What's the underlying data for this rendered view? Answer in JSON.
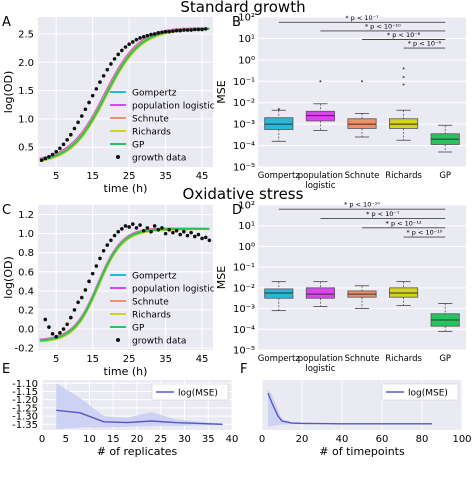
{
  "sections": [
    {
      "title": "Standard growth"
    },
    {
      "title": "Oxidative stress"
    }
  ],
  "colors": {
    "gompertz": "#29b6d9",
    "population_logistic": "#d946ef",
    "schnute": "#f0906a",
    "richards": "#d4d420",
    "gp": "#22c55e",
    "growth_data": "#111111",
    "axes_bg": "#eaeaf2",
    "grid": "#ffffff",
    "log_mse_line": "#5558c8",
    "log_mse_band": "#c8cdf2"
  },
  "chart_data": [
    {
      "panel": "A",
      "type": "line",
      "xlabel": "time (h)",
      "ylabel": "log(OD)",
      "xlim": [
        0,
        48
      ],
      "ylim": [
        0.15,
        2.8
      ],
      "xticks": [
        5,
        15,
        25,
        35,
        45
      ],
      "yticks": [
        0.5,
        1.0,
        1.5,
        2.0,
        2.5
      ],
      "ytick_labels": [
        "0.5",
        "1.0",
        "1.5",
        "2.0",
        "2.5"
      ],
      "legend": "bottom-right",
      "model": {
        "type": "logistic",
        "base": 0.22,
        "amp": 2.38,
        "mid": 18.5,
        "rate": 0.21
      },
      "series": [
        {
          "name": "Gompertz",
          "key": "gompertz",
          "offset": -0.02
        },
        {
          "name": "population logistic",
          "key": "population_logistic",
          "offset": 0.06
        },
        {
          "name": "Schnute",
          "key": "schnute",
          "offset": 0.03
        },
        {
          "name": "Richards",
          "key": "richards",
          "offset": -0.04
        },
        {
          "name": "GP",
          "key": "gp",
          "offset": 0.0
        }
      ],
      "data_name": "growth data",
      "data_points": [
        [
          1,
          0.27
        ],
        [
          2,
          0.3
        ],
        [
          3,
          0.33
        ],
        [
          4,
          0.37
        ],
        [
          5,
          0.42
        ],
        [
          6,
          0.48
        ],
        [
          7,
          0.55
        ],
        [
          8,
          0.63
        ],
        [
          9,
          0.72
        ],
        [
          10,
          0.83
        ],
        [
          11,
          0.94
        ],
        [
          12,
          1.05
        ],
        [
          13,
          1.17
        ],
        [
          14,
          1.29
        ],
        [
          15,
          1.41
        ],
        [
          16,
          1.53
        ],
        [
          17,
          1.65
        ],
        [
          18,
          1.76
        ],
        [
          19,
          1.87
        ],
        [
          20,
          1.97
        ],
        [
          21,
          2.06
        ],
        [
          22,
          2.14
        ],
        [
          23,
          2.21
        ],
        [
          24,
          2.27
        ],
        [
          25,
          2.32
        ],
        [
          26,
          2.36
        ],
        [
          27,
          2.4
        ],
        [
          28,
          2.43
        ],
        [
          29,
          2.45
        ],
        [
          30,
          2.47
        ],
        [
          31,
          2.49
        ],
        [
          32,
          2.5
        ],
        [
          33,
          2.52
        ],
        [
          34,
          2.53
        ],
        [
          35,
          2.54
        ],
        [
          36,
          2.54
        ],
        [
          37,
          2.55
        ],
        [
          38,
          2.56
        ],
        [
          39,
          2.56
        ],
        [
          40,
          2.57
        ],
        [
          41,
          2.57
        ],
        [
          42,
          2.57
        ],
        [
          43,
          2.58
        ],
        [
          44,
          2.58
        ],
        [
          45,
          2.58
        ],
        [
          46,
          2.59
        ]
      ]
    },
    {
      "panel": "B",
      "type": "box",
      "ylabel": "MSE",
      "ylog": true,
      "ylim_exp": [
        -5,
        2
      ],
      "ytick_labels": [
        "10⁻⁵",
        "10⁻⁴",
        "10⁻³",
        "10⁻²",
        "10⁻¹",
        "10⁰",
        "10¹",
        "10²"
      ],
      "categories": [
        "Gompertz",
        "population logistic",
        "Schnute",
        "Richards",
        "GP"
      ],
      "category_keys": [
        "gompertz",
        "population_logistic",
        "schnute",
        "richards",
        "gp"
      ],
      "boxes_log10": [
        {
          "whislo": -3.8,
          "q1": -3.25,
          "med": -3.0,
          "q3": -2.7,
          "whishi": -2.35,
          "fliers": [
            -2.3
          ]
        },
        {
          "whislo": -3.3,
          "q1": -2.85,
          "med": -2.6,
          "q3": -2.4,
          "whishi": -2.05,
          "fliers": [
            -1.0
          ]
        },
        {
          "whislo": -3.6,
          "q1": -3.2,
          "med": -3.0,
          "q3": -2.75,
          "whishi": -2.5,
          "fliers": [
            -1.0
          ]
        },
        {
          "whislo": -3.75,
          "q1": -3.2,
          "med": -3.0,
          "q3": -2.75,
          "whishi": -2.35,
          "fliers": [
            -0.4,
            -0.8,
            -1.15
          ]
        },
        {
          "whislo": -4.3,
          "q1": -3.95,
          "med": -3.7,
          "q3": -3.45,
          "whishi": -3.05,
          "fliers": []
        }
      ],
      "significance": [
        {
          "label": "* p < 10⁻⁷",
          "from": 0,
          "to": 4,
          "y_log10": 1.75
        },
        {
          "label": "* p < 10⁻¹⁰",
          "from": 1,
          "to": 4,
          "y_log10": 1.35
        },
        {
          "label": "* p < 10⁻⁸",
          "from": 2,
          "to": 4,
          "y_log10": 0.95
        },
        {
          "label": "* p < 10⁻⁶",
          "from": 3,
          "to": 4,
          "y_log10": 0.55
        }
      ]
    },
    {
      "panel": "C",
      "type": "line",
      "xlabel": "time (h)",
      "ylabel": "log(OD)",
      "xlim": [
        0,
        48
      ],
      "ylim": [
        -0.22,
        1.3
      ],
      "xticks": [
        5,
        15,
        25,
        35,
        45
      ],
      "yticks": [
        -0.2,
        0.0,
        0.2,
        0.4,
        0.6,
        0.8,
        1.0,
        1.2
      ],
      "ytick_labels": [
        "-0.2",
        "0.0",
        "0.2",
        "0.4",
        "0.6",
        "0.8",
        "1.0",
        "1.2"
      ],
      "legend": "bottom-right",
      "model": {
        "type": "logistic",
        "base": -0.13,
        "amp": 1.18,
        "mid": 16.5,
        "rate": 0.3
      },
      "series": [
        {
          "name": "Gompertz",
          "key": "gompertz",
          "offset": -0.01
        },
        {
          "name": "population logistic",
          "key": "population_logistic",
          "offset": 0.02
        },
        {
          "name": "Schnute",
          "key": "schnute",
          "offset": 0.01
        },
        {
          "name": "Richards",
          "key": "richards",
          "offset": -0.02
        },
        {
          "name": "GP",
          "key": "gp",
          "offset": 0.0
        }
      ],
      "data_name": "growth data",
      "data_points": [
        [
          2,
          0.1
        ],
        [
          3,
          0.02
        ],
        [
          4,
          -0.05
        ],
        [
          5,
          -0.08
        ],
        [
          6,
          -0.04
        ],
        [
          7,
          0.0
        ],
        [
          8,
          0.05
        ],
        [
          9,
          0.12
        ],
        [
          10,
          0.2
        ],
        [
          11,
          0.28
        ],
        [
          12,
          0.33
        ],
        [
          13,
          0.41
        ],
        [
          14,
          0.5
        ],
        [
          15,
          0.58
        ],
        [
          16,
          0.66
        ],
        [
          17,
          0.74
        ],
        [
          18,
          0.82
        ],
        [
          19,
          0.88
        ],
        [
          20,
          0.93
        ],
        [
          21,
          0.98
        ],
        [
          22,
          1.02
        ],
        [
          23,
          1.05
        ],
        [
          24,
          1.08
        ],
        [
          25,
          1.07
        ],
        [
          26,
          1.1
        ],
        [
          27,
          1.06
        ],
        [
          28,
          1.09
        ],
        [
          29,
          1.03
        ],
        [
          30,
          1.06
        ],
        [
          31,
          1.02
        ],
        [
          32,
          1.08
        ],
        [
          33,
          1.04
        ],
        [
          34,
          1.06
        ],
        [
          35,
          1.0
        ],
        [
          36,
          1.04
        ],
        [
          37,
          1.01
        ],
        [
          38,
          1.03
        ],
        [
          39,
          0.99
        ],
        [
          40,
          1.02
        ],
        [
          41,
          0.98
        ],
        [
          42,
          1.01
        ],
        [
          43,
          0.97
        ],
        [
          44,
          0.99
        ],
        [
          45,
          0.95
        ],
        [
          46,
          0.96
        ],
        [
          47,
          0.93
        ]
      ]
    },
    {
      "panel": "D",
      "type": "box",
      "ylabel": "MSE",
      "ylog": true,
      "ylim_exp": [
        -5,
        2
      ],
      "ytick_labels": [
        "10⁻⁵",
        "10⁻⁴",
        "10⁻³",
        "10⁻²",
        "10⁻¹",
        "10⁰",
        "10¹",
        "10²"
      ],
      "categories": [
        "Gompertz",
        "population logistic",
        "Schnute",
        "Richards",
        "GP"
      ],
      "category_keys": [
        "gompertz",
        "population_logistic",
        "schnute",
        "richards",
        "gp"
      ],
      "boxes_log10": [
        {
          "whislo": -3.1,
          "q1": -2.5,
          "med": -2.25,
          "q3": -2.05,
          "whishi": -1.7,
          "fliers": []
        },
        {
          "whislo": -2.9,
          "q1": -2.5,
          "med": -2.3,
          "q3": -2.0,
          "whishi": -1.7,
          "fliers": []
        },
        {
          "whislo": -3.0,
          "q1": -2.45,
          "med": -2.3,
          "q3": -2.15,
          "whishi": -1.9,
          "fliers": []
        },
        {
          "whislo": -2.85,
          "q1": -2.45,
          "med": -2.25,
          "q3": -2.0,
          "whishi": -1.7,
          "fliers": []
        },
        {
          "whislo": -4.1,
          "q1": -3.85,
          "med": -3.55,
          "q3": -3.25,
          "whishi": -2.75,
          "fliers": []
        }
      ],
      "significance": [
        {
          "label": "* p < 10⁻¹⁰",
          "from": 0,
          "to": 4,
          "y_log10": 1.8
        },
        {
          "label": "* p < 10⁻⁷",
          "from": 1,
          "to": 4,
          "y_log10": 1.35
        },
        {
          "label": "* p < 10⁻¹²",
          "from": 2,
          "to": 4,
          "y_log10": 0.9
        },
        {
          "label": "* p < 10⁻¹⁰",
          "from": 3,
          "to": 4,
          "y_log10": 0.45
        }
      ]
    },
    {
      "panel": "E",
      "type": "line",
      "xlabel": "# of replicates",
      "xlim": [
        0,
        40
      ],
      "ylim": [
        -1.385,
        -1.08
      ],
      "xticks": [
        0,
        5,
        10,
        15,
        20,
        25,
        30,
        35,
        40
      ],
      "yticks": [
        -1.35,
        -1.3,
        -1.25,
        -1.2,
        -1.15,
        -1.1
      ],
      "ytick_labels": [
        "-1.35",
        "-1.30",
        "-1.25",
        "-1.20",
        "-1.15",
        "-1.10"
      ],
      "legend": "top-right",
      "series": [
        {
          "name": "log(MSE)",
          "key": "log_mse_line",
          "x": [
            3,
            8,
            13,
            18,
            23,
            28,
            33,
            38
          ],
          "y": [
            -1.265,
            -1.28,
            -1.335,
            -1.34,
            -1.33,
            -1.34,
            -1.345,
            -1.35
          ],
          "lower": [
            -1.38,
            -1.37,
            -1.37,
            -1.365,
            -1.36,
            -1.36,
            -1.357,
            -1.355
          ],
          "upper": [
            -1.1,
            -1.19,
            -1.3,
            -1.31,
            -1.275,
            -1.32,
            -1.335,
            -1.345
          ]
        }
      ]
    },
    {
      "panel": "F",
      "type": "line",
      "xlabel": "# of timepoints",
      "xlim": [
        0,
        100
      ],
      "ylim": [
        -1.385,
        -1.08
      ],
      "xticks": [
        0,
        20,
        40,
        60,
        80,
        100
      ],
      "legend": "top-right",
      "series": [
        {
          "name": "log(MSE)",
          "key": "log_mse_line",
          "x": [
            3,
            5,
            8,
            10,
            15,
            20,
            30,
            40,
            50,
            60,
            70,
            80,
            85
          ],
          "y": [
            -1.16,
            -1.22,
            -1.3,
            -1.33,
            -1.343,
            -1.345,
            -1.346,
            -1.347,
            -1.347,
            -1.347,
            -1.347,
            -1.347,
            -1.347
          ],
          "lower": [
            -1.37,
            -1.36,
            -1.355,
            -1.352,
            -1.35,
            -1.349,
            -1.349,
            -1.349,
            -1.349,
            -1.349,
            -1.349,
            -1.349,
            -1.349
          ],
          "upper": [
            -1.14,
            -1.17,
            -1.26,
            -1.32,
            -1.337,
            -1.341,
            -1.343,
            -1.344,
            -1.345,
            -1.345,
            -1.345,
            -1.345,
            -1.345
          ]
        }
      ]
    }
  ]
}
